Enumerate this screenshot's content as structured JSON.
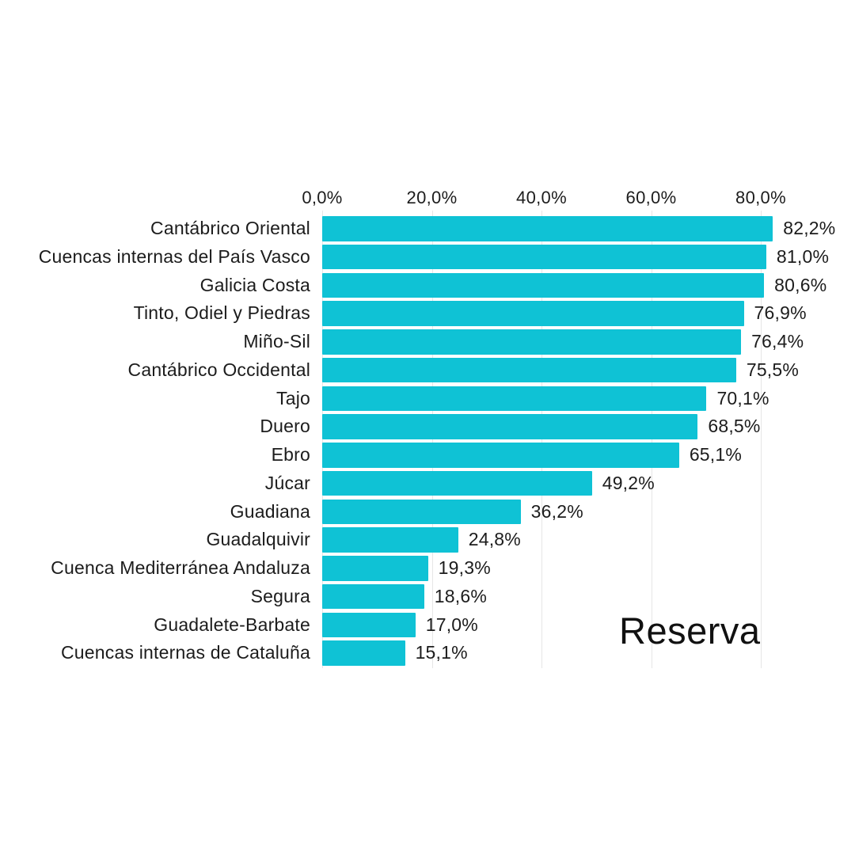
{
  "chart_data": {
    "type": "bar",
    "orientation": "horizontal",
    "title": "Reserva",
    "x_axis": {
      "position": "top",
      "tick_labels": [
        "0,0%",
        "20,0%",
        "40,0%",
        "60,0%",
        "80,0%"
      ],
      "tick_values": [
        0,
        20,
        40,
        60,
        80
      ],
      "grid": true
    },
    "xlim": [
      0,
      85
    ],
    "legend": "none",
    "categories": [
      "Cantábrico Oriental",
      "Cuencas internas del País Vasco",
      "Galicia Costa",
      "Tinto, Odiel y Piedras",
      "Miño-Sil",
      "Cantábrico Occidental",
      "Tajo",
      "Duero",
      "Ebro",
      "Júcar",
      "Guadiana",
      "Guadalquivir",
      "Cuenca Mediterránea Andaluza",
      "Segura",
      "Guadalete-Barbate",
      "Cuencas internas de Cataluña"
    ],
    "values": [
      82.2,
      81.0,
      80.6,
      76.9,
      76.4,
      75.5,
      70.1,
      68.5,
      65.1,
      49.2,
      36.2,
      24.8,
      19.3,
      18.6,
      17.0,
      15.1
    ],
    "value_labels": [
      "82,2%",
      "81,0%",
      "80,6%",
      "76,9%",
      "76,4%",
      "75,5%",
      "70,1%",
      "68,5%",
      "65,1%",
      "49,2%",
      "36,2%",
      "24,8%",
      "19,3%",
      "18,6%",
      "17,0%",
      "15,1%"
    ],
    "colors": {
      "bar": "#0fc2d5",
      "gridline": "#e6e6e6",
      "text": "#1c1c1c",
      "title_text": "#111111",
      "background": "#ffffff"
    }
  }
}
